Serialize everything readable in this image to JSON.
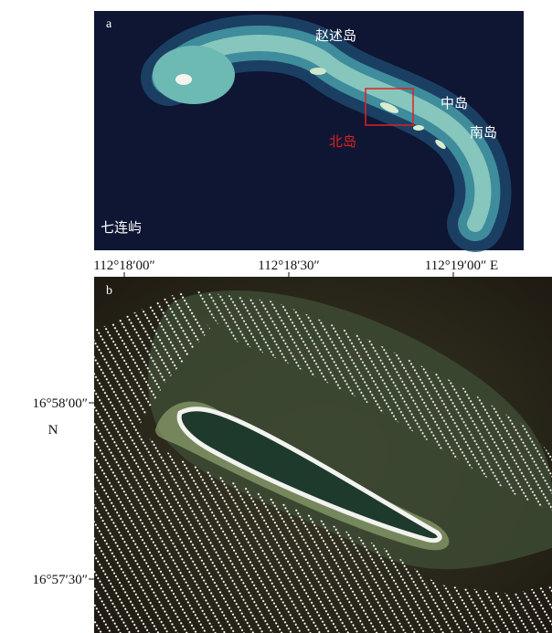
{
  "panel_a": {
    "label": "a",
    "place_labels": [
      "赵述岛",
      "中岛",
      "南岛",
      "七连屿"
    ],
    "highlight_label": "北岛"
  },
  "panel_b": {
    "label": "b",
    "x_ticks": [
      "112°18′00″",
      "112°18′30″",
      "112°19′00″ E"
    ],
    "y_ticks": [
      "16°58′00″",
      "16°57′30″"
    ],
    "y_axis_label": "N"
  }
}
